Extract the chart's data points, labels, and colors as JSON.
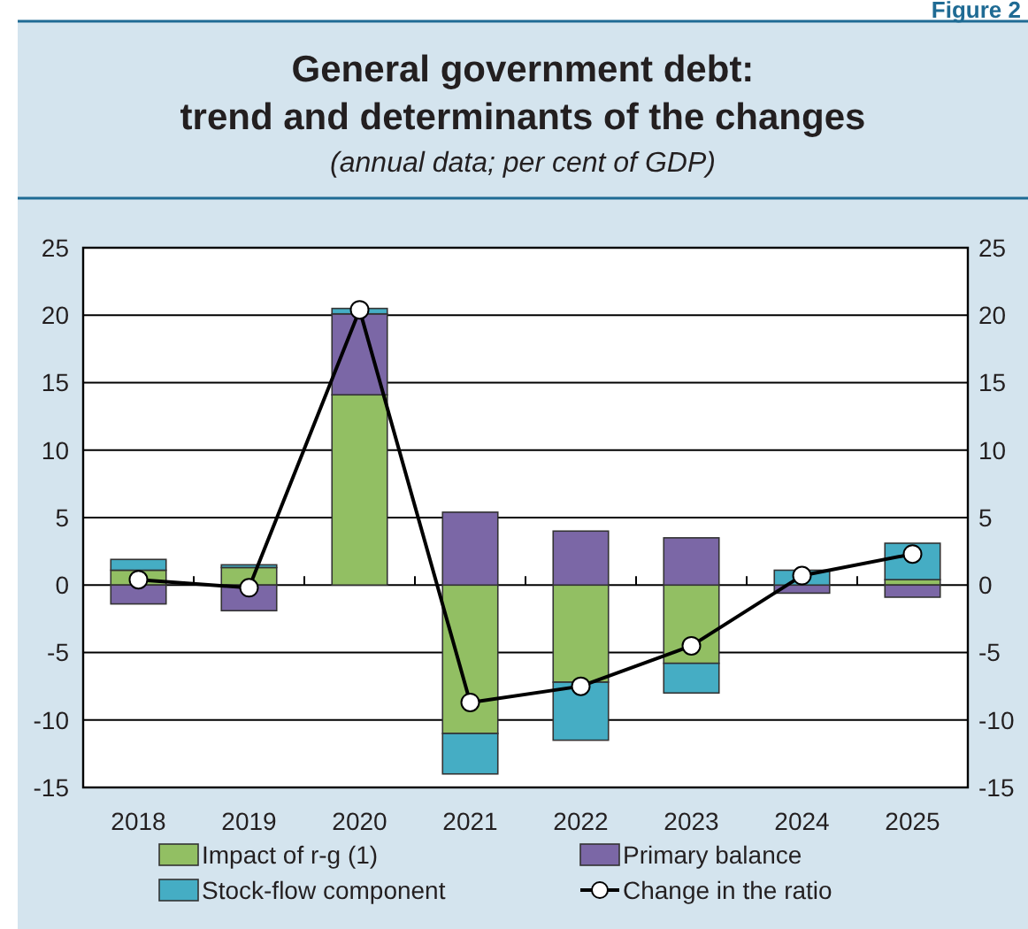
{
  "chart_data": {
    "type": "bar",
    "title": "General government debt:\ntrend and determinants of the changes",
    "subtitle": "(annual data; per cent of GDP)",
    "annotations": [
      "Figure 2"
    ],
    "categories": [
      "2018",
      "2019",
      "2020",
      "2021",
      "2022",
      "2023",
      "2024",
      "2025"
    ],
    "stacked": true,
    "series": [
      {
        "name": "Impact of r-g (1)",
        "color": "#92bf63",
        "values": [
          1.1,
          1.3,
          14.1,
          -11.0,
          -7.2,
          -5.8,
          null,
          0.4
        ]
      },
      {
        "name": "Primary balance",
        "color": "#7b67a6",
        "values": [
          -1.4,
          -1.9,
          6.0,
          5.4,
          4.0,
          3.5,
          -0.6,
          -0.9
        ]
      },
      {
        "name": "Stock-flow component",
        "color": "#45adc4",
        "values": [
          0.8,
          0.2,
          0.4,
          -3.0,
          -4.3,
          -2.2,
          1.1,
          2.7
        ]
      },
      {
        "name": "Change in the ratio",
        "type": "line",
        "color": "#000000",
        "marker": "circle",
        "values": [
          0.4,
          -0.2,
          20.4,
          -8.7,
          -7.5,
          -4.5,
          0.7,
          2.3
        ]
      }
    ],
    "ylim": [
      -15,
      25
    ],
    "yticks": [
      -15,
      -10,
      -5,
      0,
      5,
      10,
      15,
      20,
      25
    ],
    "y2lim": [
      -15,
      25
    ],
    "y2ticks": [
      -15,
      -10,
      -5,
      0,
      5,
      10,
      15,
      20,
      25
    ],
    "grid": "y",
    "legend": "bottom"
  }
}
